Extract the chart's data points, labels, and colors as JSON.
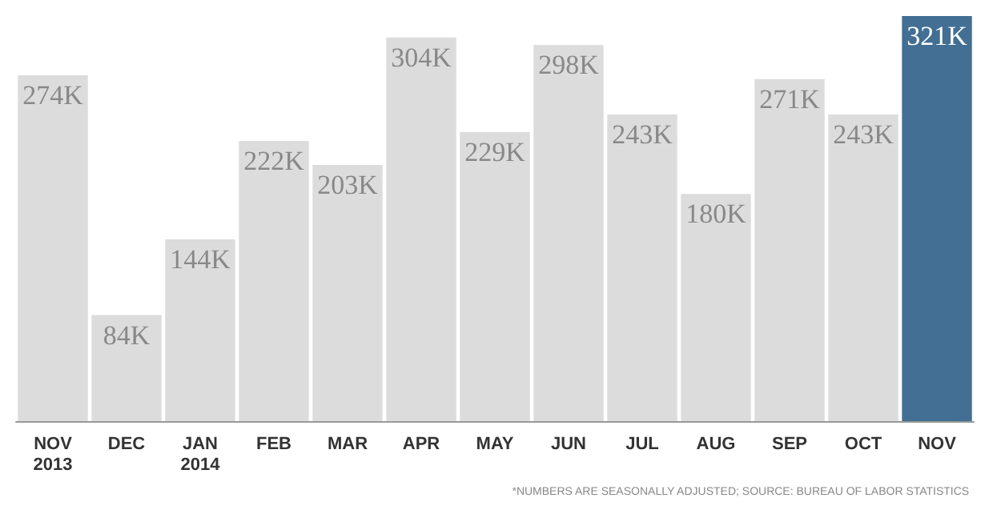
{
  "chart_data": {
    "type": "bar",
    "categories": [
      "NOV\n2013",
      "DEC",
      "JAN\n2014",
      "FEB",
      "MAR",
      "APR",
      "MAY",
      "JUN",
      "JUL",
      "AUG",
      "SEP",
      "OCT",
      "NOV"
    ],
    "values": [
      274,
      84,
      144,
      222,
      203,
      304,
      229,
      298,
      243,
      180,
      271,
      243,
      321
    ],
    "value_labels": [
      "274K",
      "84K",
      "144K",
      "222K",
      "203K",
      "304K",
      "229K",
      "298K",
      "243K",
      "180K",
      "271K",
      "243K",
      "321K"
    ],
    "colors": [
      "#dcdcdc",
      "#dcdcdc",
      "#dcdcdc",
      "#dcdcdc",
      "#dcdcdc",
      "#dcdcdc",
      "#dcdcdc",
      "#dcdcdc",
      "#dcdcdc",
      "#dcdcdc",
      "#dcdcdc",
      "#dcdcdc",
      "#426f93"
    ],
    "annotations": [
      "*NUMBERS ARE SEASONALLY ADJUSTED; SOURCE: BUREAU OF LABOR STATISTICS"
    ]
  }
}
